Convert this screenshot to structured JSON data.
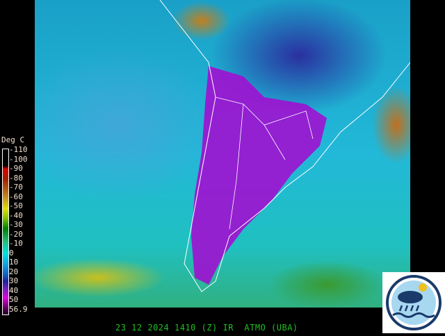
{
  "legend": {
    "title": "Deg C",
    "ticks": [
      "-110",
      "-100",
      "-90",
      "-80",
      "-70",
      "-60",
      "-50",
      "-40",
      "-30",
      "-20",
      "-10",
      "0",
      "10",
      "20",
      "30",
      "40",
      "50",
      "56.9"
    ]
  },
  "footer": {
    "date": "23 12 2024",
    "time": "1410 (Z)",
    "channel": "IR",
    "source": "ATMO (UBA)",
    "text": "23 12 2024 1410 (Z) IR  ATMO (UBA)"
  },
  "logo": {
    "name": "atmo-logo"
  },
  "colors": {
    "footer_text": "#20c020",
    "cold_cloud": "#a000e0",
    "ocean": "#20b8d8"
  }
}
